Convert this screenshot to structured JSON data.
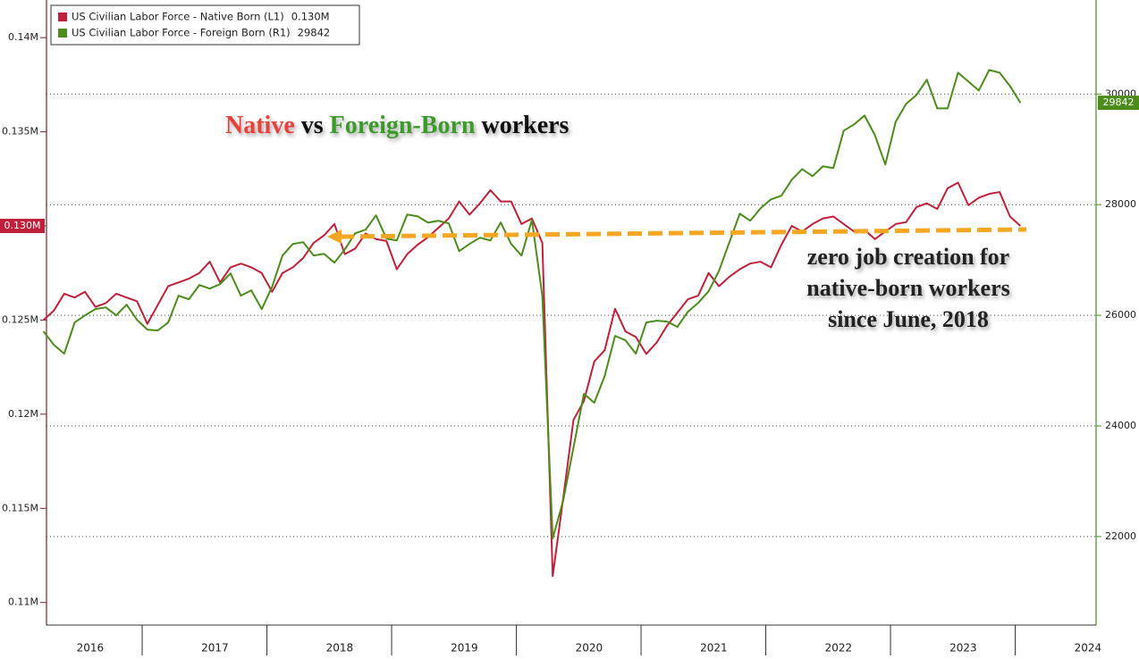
{
  "chart_data": {
    "type": "line",
    "title": [
      "Native",
      "vs",
      "Foreign-Born",
      "workers"
    ],
    "title_colors": [
      "#e8403a",
      "#111111",
      "#3a9a2a",
      "#111111"
    ],
    "annotation": [
      "zero job creation for",
      "native-born workers",
      "since June, 2018"
    ],
    "categories": [
      null,
      null,
      null,
      null,
      "2016",
      null,
      null,
      null,
      null,
      null,
      null,
      null,
      null,
      null,
      null,
      null,
      "2017",
      null,
      null,
      null,
      null,
      null,
      null,
      null,
      null,
      null,
      null,
      null,
      "2018",
      null,
      null,
      null,
      null,
      null,
      null,
      null,
      null,
      null,
      null,
      null,
      "2019",
      null,
      null,
      null,
      null,
      null,
      null,
      null,
      null,
      null,
      null,
      null,
      "2020",
      null,
      null,
      null,
      null,
      null,
      null,
      null,
      null,
      null,
      null,
      null,
      "2021",
      null,
      null,
      null,
      null,
      null,
      null,
      null,
      null,
      null,
      null,
      null,
      "2022",
      null,
      null,
      null,
      null,
      null,
      null,
      null,
      null,
      null,
      null,
      null,
      "2023",
      null,
      null,
      null,
      null,
      null,
      null,
      null,
      null,
      null,
      null,
      null,
      "2024",
      null
    ],
    "ylim": [
      0.1088,
      0.142
    ],
    "yticks": [
      {
        "value": 0.11,
        "label": "0.11M"
      },
      {
        "value": 0.115,
        "label": "0.115M"
      },
      {
        "value": 0.12,
        "label": "0.12M"
      },
      {
        "value": 0.125,
        "label": "0.125M"
      },
      {
        "value": 0.13,
        "label": "0.13M"
      },
      {
        "value": 0.135,
        "label": "0.135M"
      },
      {
        "value": 0.14,
        "label": "0.14M"
      }
    ],
    "y2lim": [
      20400,
      31700
    ],
    "y2ticks": [
      22000,
      24000,
      26000,
      28000,
      30000
    ],
    "grid": true,
    "legend": "upper left",
    "series": [
      {
        "name": "US Civilian Labor Force - Native Born (L1)",
        "color": "#c0203a",
        "axis": "y",
        "values": [
          0.125,
          0.1255,
          0.1264,
          0.1262,
          0.1265,
          0.1257,
          0.1259,
          0.1264,
          0.1262,
          0.126,
          0.1248,
          0.1258,
          0.1268,
          0.127,
          0.1272,
          0.1275,
          0.1281,
          0.127,
          0.1278,
          0.128,
          0.1278,
          0.1275,
          0.1265,
          0.1275,
          0.1278,
          0.1283,
          0.1291,
          0.1295,
          0.1301,
          0.1285,
          0.1288,
          0.1296,
          0.1293,
          0.1292,
          0.1277,
          0.1285,
          0.129,
          0.1294,
          0.1299,
          0.1304,
          0.1313,
          0.1306,
          0.1312,
          0.1319,
          0.1313,
          0.1313,
          0.1301,
          0.1304,
          0.1291,
          0.1114,
          0.1155,
          0.1197,
          0.1207,
          0.1228,
          0.1234,
          0.1256,
          0.1244,
          0.1241,
          0.1232,
          0.1238,
          0.1247,
          0.1254,
          0.1261,
          0.1263,
          0.1275,
          0.1268,
          0.1273,
          0.1277,
          0.128,
          0.1281,
          0.1278,
          0.129,
          0.13,
          0.1297,
          0.1301,
          0.1304,
          0.1305,
          0.1301,
          0.1297,
          0.1298,
          0.1293,
          0.1297,
          0.1301,
          0.1302,
          0.131,
          0.1312,
          0.1309,
          0.132,
          0.1323,
          0.1311,
          0.1315,
          0.1317,
          0.1318,
          0.1305,
          0.13,
          null,
          null,
          null,
          null,
          null,
          null,
          null
        ],
        "value_labels": [
          null,
          null,
          null,
          null,
          null,
          null,
          null,
          null,
          null,
          null,
          null,
          null,
          null,
          null,
          null,
          null,
          null,
          null,
          null,
          null,
          null,
          null,
          null,
          null,
          null,
          null,
          null,
          null,
          null,
          null,
          null,
          null,
          null,
          null,
          null,
          null,
          null,
          null,
          null,
          null,
          null,
          null,
          null,
          null,
          null,
          null,
          null,
          null,
          null,
          null,
          null,
          null,
          null,
          null,
          null,
          null,
          null,
          null,
          null,
          null,
          null,
          null,
          null,
          null,
          null,
          null,
          null,
          null,
          null,
          null,
          null,
          null,
          null,
          null,
          null,
          null,
          null,
          null,
          null,
          null,
          null,
          null,
          null,
          null,
          null,
          null,
          null,
          null,
          null,
          null,
          null,
          null,
          null,
          null,
          "0.130M",
          null,
          null,
          null,
          null,
          null,
          null,
          null
        ]
      },
      {
        "name": "US Civilian Labor Force - Foreign Born (R1)",
        "color": "#4c8c1a",
        "axis": "y2",
        "values": [
          25710,
          25467,
          25306,
          25870,
          25999,
          26112,
          26144,
          25999,
          26193,
          25919,
          25741,
          25725,
          25870,
          26354,
          26290,
          26548,
          26483,
          26564,
          26757,
          26354,
          26451,
          26112,
          26515,
          27080,
          27290,
          27322,
          27080,
          27112,
          26951,
          27193,
          27483,
          27548,
          27806,
          27386,
          27354,
          27822,
          27790,
          27677,
          27709,
          27661,
          27161,
          27290,
          27403,
          27354,
          27677,
          27290,
          27080,
          27725,
          26354,
          21967,
          22644,
          23612,
          24580,
          24419,
          24902,
          25628,
          25548,
          25306,
          25870,
          25902,
          25886,
          25790,
          26064,
          26225,
          26435,
          26806,
          27322,
          27838,
          27709,
          27935,
          28096,
          28161,
          28451,
          28644,
          28515,
          28693,
          28661,
          29338,
          29451,
          29612,
          29258,
          28725,
          29499,
          29822,
          29983,
          30258,
          29741,
          29741,
          30387,
          30225,
          30064,
          30435,
          30387,
          30145,
          29842,
          null,
          null,
          null,
          null,
          null,
          null,
          null
        ]
      }
    ]
  }
}
